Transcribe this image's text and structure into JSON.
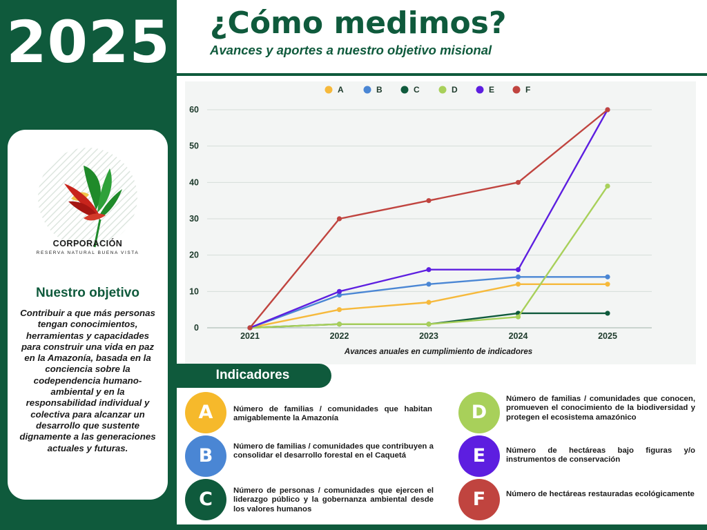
{
  "sidebar": {
    "year": "2025",
    "logo_title": "CORPORACIÓN",
    "logo_subtitle": "RESERVA NATURAL BUENA VISTA",
    "objective_title": "Nuestro objetivo",
    "objective_text": "Contribuir a que más personas tengan conocimientos, herramientas y capacidades para construir una vida en paz en la Amazonía, basada en la conciencia sobre la codependencia humano-ambiental y en la responsabilidad individual y colectiva para alcanzar un desarrollo que sustente dignamente a las generaciones actuales y futuras."
  },
  "header": {
    "title": "¿Cómo medimos?",
    "subtitle": "Avances y aportes a nuestro objetivo misional"
  },
  "chart_data": {
    "type": "line",
    "title": "",
    "caption": "Avances anuales en cumplimiento de indicadores",
    "xlabel": "",
    "ylabel": "",
    "categories": [
      "2021",
      "2022",
      "2023",
      "2024",
      "2025"
    ],
    "ylim": [
      0,
      60
    ],
    "yticks": [
      "0",
      "10",
      "20",
      "30",
      "40",
      "50",
      "60"
    ],
    "grid": true,
    "legend_position": "top-center",
    "series": [
      {
        "name": "A",
        "color": "#f6b93b",
        "values": [
          0,
          5,
          7,
          12,
          12
        ]
      },
      {
        "name": "B",
        "color": "#4a86d4",
        "values": [
          0,
          9,
          12,
          14,
          14
        ]
      },
      {
        "name": "C",
        "color": "#0f5a3c",
        "values": [
          0,
          1,
          1,
          4,
          4
        ]
      },
      {
        "name": "D",
        "color": "#a8d05a",
        "values": [
          0,
          1,
          1,
          3,
          39
        ]
      },
      {
        "name": "E",
        "color": "#5d1ee0",
        "values": [
          0,
          10,
          16,
          16,
          60
        ]
      },
      {
        "name": "F",
        "color": "#c0443f",
        "values": [
          0,
          30,
          35,
          40,
          60
        ]
      }
    ]
  },
  "indicators": {
    "title": "Indicadores",
    "items": [
      {
        "letter": "A",
        "color": "#f6b92b",
        "text": "Número de familias / comunidades que habitan amigablemente la Amazonía"
      },
      {
        "letter": "B",
        "color": "#4a86d4",
        "text": "Número de familias / comunidades que contribuyen a consolidar el desarrollo forestal en el Caquetá"
      },
      {
        "letter": "C",
        "color": "#0f5a3c",
        "text": "Número de personas / comunidades que ejercen el liderazgo público y la gobernanza ambiental desde los valores humanos"
      },
      {
        "letter": "D",
        "color": "#a8d05a",
        "text": "Número de familias / comunidades que conocen, promueven el conocimiento de la biodiversidad y protegen el ecosistema amazónico"
      },
      {
        "letter": "E",
        "color": "#5d1ee0",
        "text": "Número de hectáreas bajo figuras y/o instrumentos de conservación"
      },
      {
        "letter": "F",
        "color": "#c0443f",
        "text": "Número de hectáreas restauradas ecológicamente"
      }
    ]
  }
}
